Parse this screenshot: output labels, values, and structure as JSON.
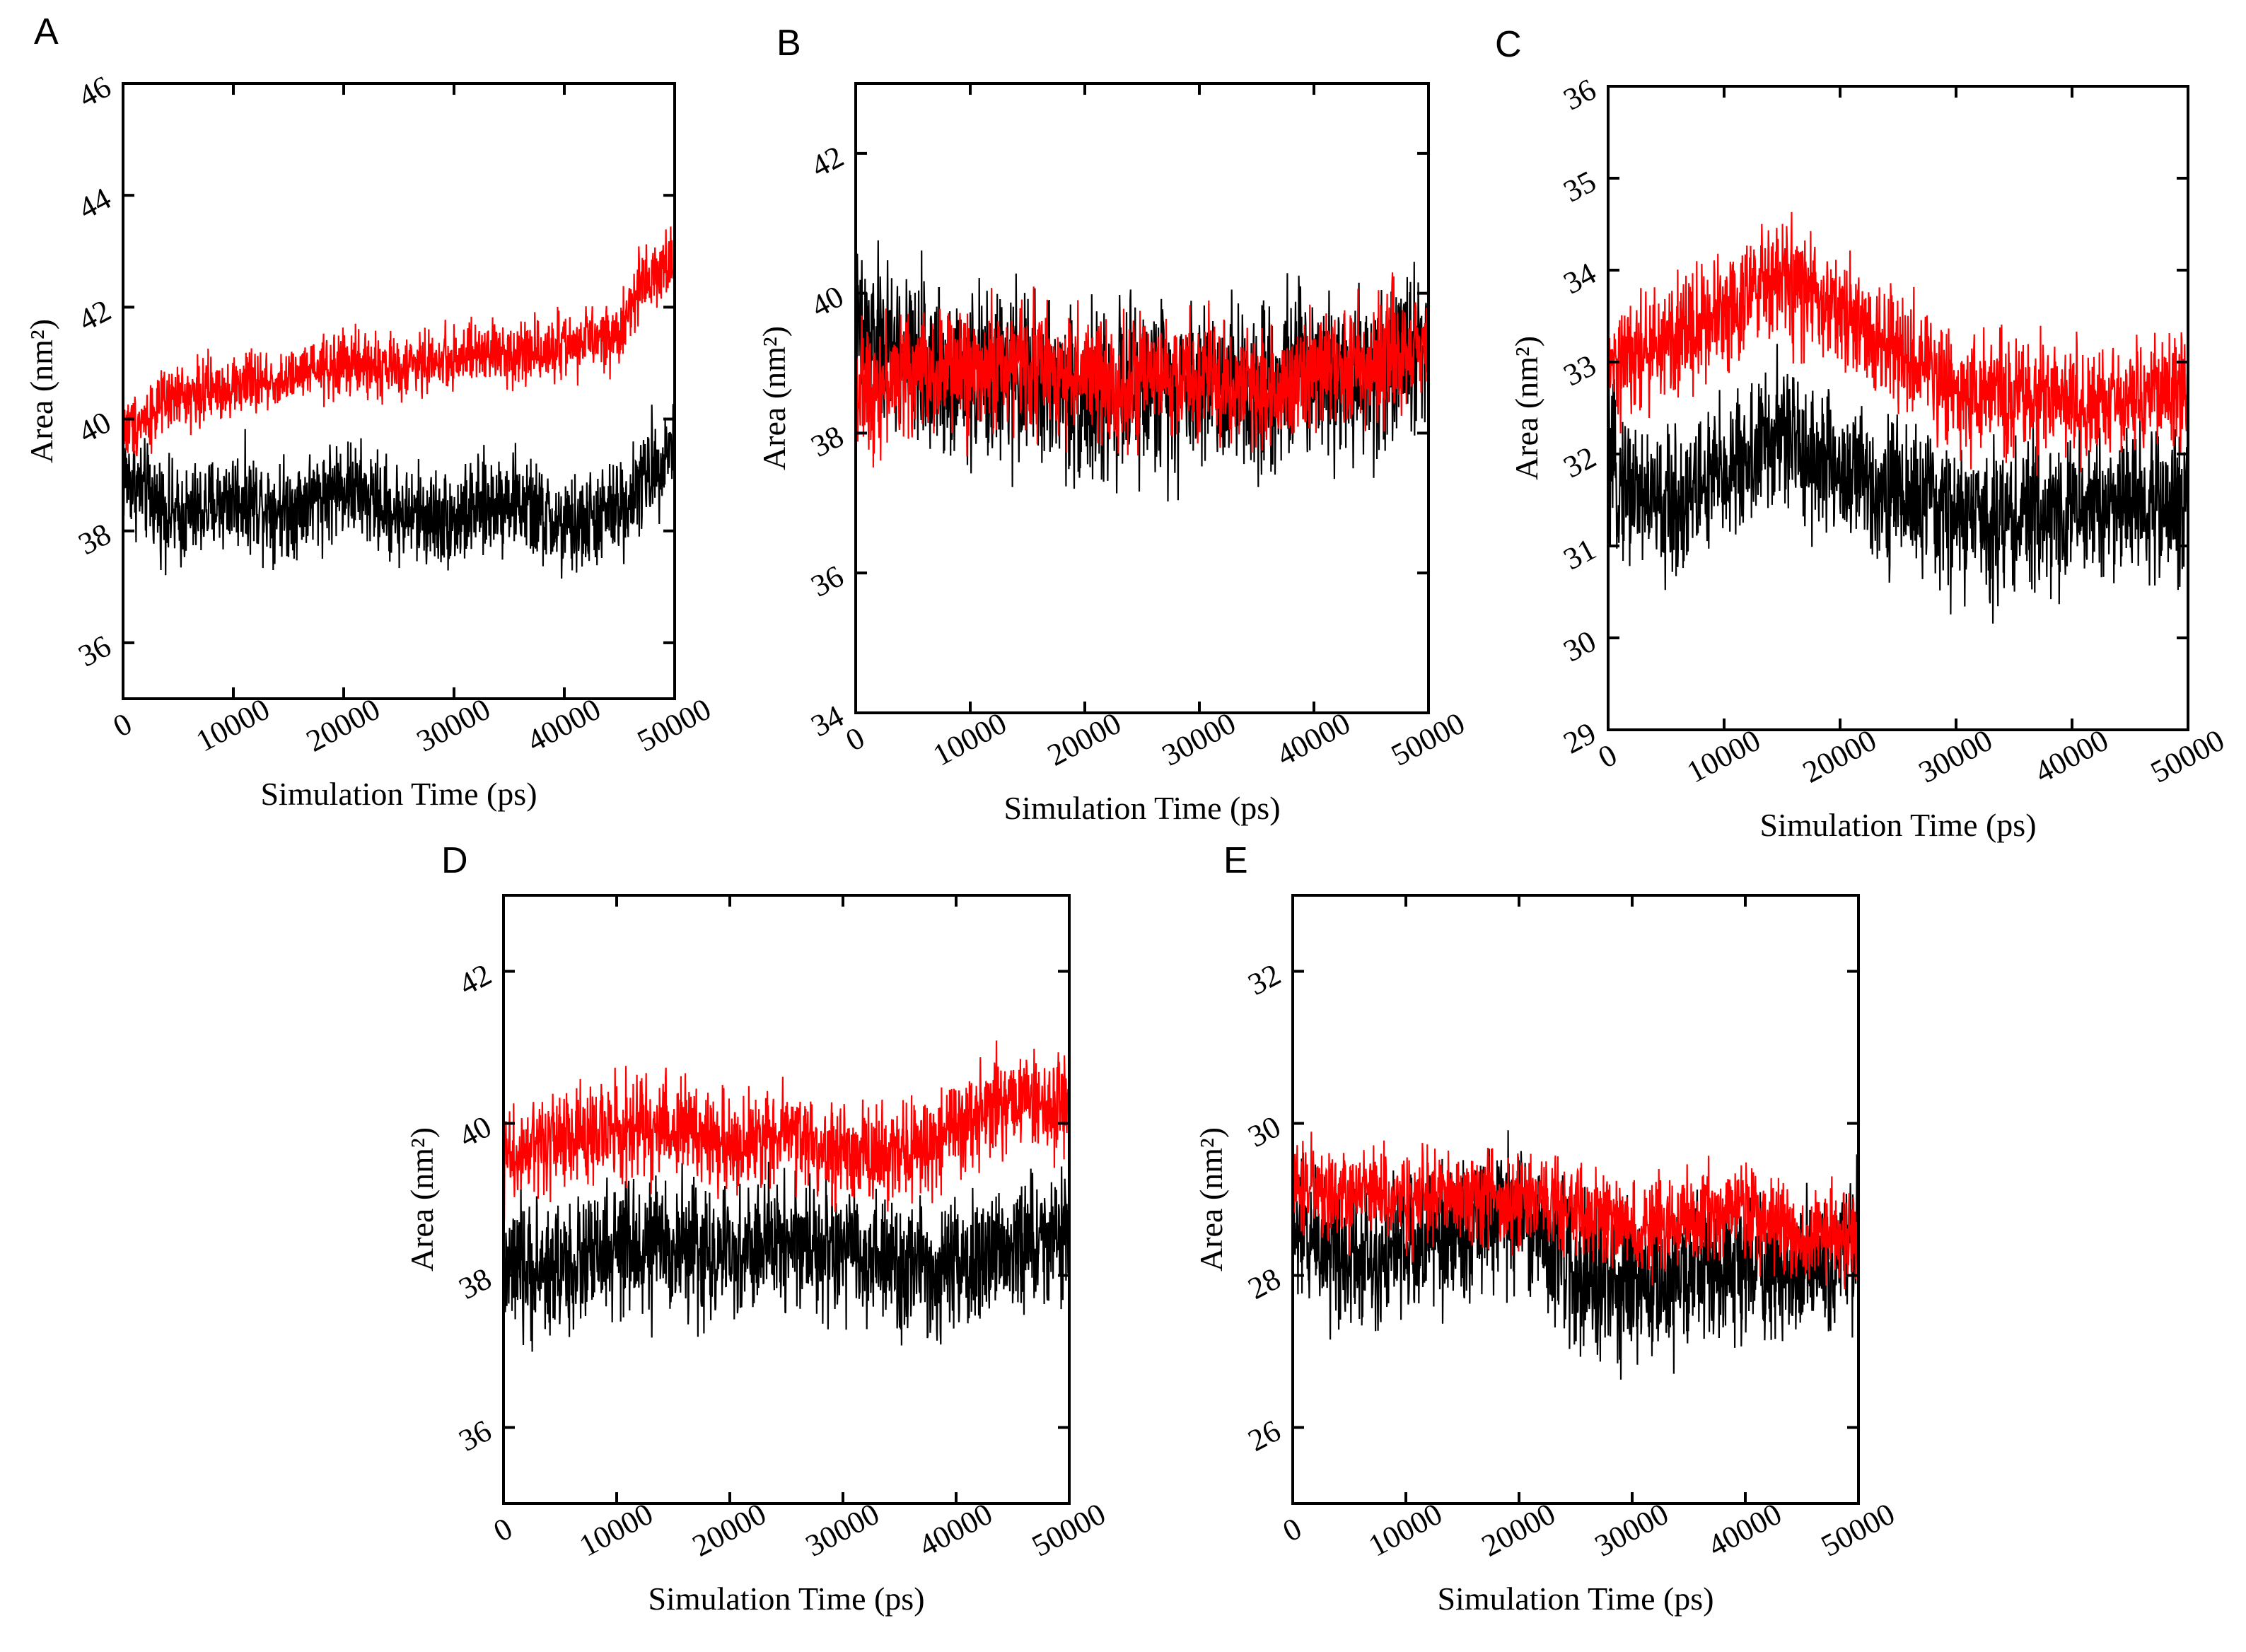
{
  "chart_data": [
    {
      "panel": "A",
      "type": "line",
      "xlabel": "Simulation Time (ps)",
      "ylabel": "Area (nm²)",
      "xlim": [
        0,
        50000
      ],
      "ylim": [
        35,
        46
      ],
      "x_ticks": [
        "0",
        "10000",
        "20000",
        "30000",
        "40000",
        "50000"
      ],
      "y_ticks": [
        "36",
        "38",
        "40",
        "42",
        "44",
        "46"
      ],
      "series": [
        {
          "name": "black",
          "color": "#000000",
          "x": [
            0,
            5000,
            10000,
            15000,
            20000,
            25000,
            30000,
            35000,
            40000,
            45000,
            50000
          ],
          "y": [
            39.0,
            38.2,
            38.6,
            38.4,
            38.8,
            38.3,
            38.2,
            38.6,
            38.0,
            38.4,
            39.6
          ],
          "noise": 2.6
        },
        {
          "name": "red",
          "color": "#ff0000",
          "x": [
            0,
            5000,
            10000,
            15000,
            20000,
            25000,
            30000,
            35000,
            40000,
            45000,
            47000,
            50000
          ],
          "y": [
            39.8,
            40.4,
            40.6,
            40.7,
            41.0,
            40.9,
            41.1,
            41.2,
            41.3,
            41.5,
            42.5,
            42.8
          ],
          "noise": 1.7
        }
      ]
    },
    {
      "panel": "B",
      "type": "line",
      "xlabel": "Simulation Time (ps)",
      "ylabel": "Area (nm²)",
      "xlim": [
        0,
        50000
      ],
      "ylim": [
        34,
        43
      ],
      "x_ticks": [
        "0",
        "10000",
        "20000",
        "30000",
        "40000",
        "50000"
      ],
      "y_ticks": [
        "34",
        "36",
        "38",
        "40",
        "42"
      ],
      "series": [
        {
          "name": "black",
          "color": "#000000",
          "x": [
            0,
            5000,
            10000,
            15000,
            20000,
            25000,
            30000,
            35000,
            40000,
            45000,
            50000
          ],
          "y": [
            39.4,
            39.0,
            38.8,
            38.8,
            38.5,
            38.6,
            38.8,
            38.7,
            39.0,
            38.8,
            39.4
          ],
          "noise": 3.6
        },
        {
          "name": "red",
          "color": "#ff0000",
          "x": [
            0,
            5000,
            10000,
            15000,
            20000,
            25000,
            30000,
            35000,
            40000,
            45000,
            50000
          ],
          "y": [
            38.6,
            38.9,
            38.9,
            39.0,
            38.8,
            38.7,
            38.8,
            38.6,
            38.9,
            39.0,
            39.3
          ],
          "noise": 2.6
        }
      ]
    },
    {
      "panel": "C",
      "type": "line",
      "xlabel": "Simulation Time (ps)",
      "ylabel": "Area (nm²)",
      "xlim": [
        0,
        50000
      ],
      "ylim": [
        29,
        36
      ],
      "x_ticks": [
        "0",
        "10000",
        "20000",
        "30000",
        "40000",
        "50000"
      ],
      "y_ticks": [
        "29",
        "30",
        "31",
        "32",
        "33",
        "34",
        "35",
        "36"
      ],
      "series": [
        {
          "name": "black",
          "color": "#000000",
          "x": [
            0,
            5000,
            10000,
            15000,
            20000,
            25000,
            30000,
            35000,
            40000,
            45000,
            50000
          ],
          "y": [
            31.8,
            31.4,
            31.8,
            32.2,
            31.8,
            31.6,
            31.3,
            31.3,
            31.4,
            31.5,
            31.4
          ],
          "noise": 2.4
        },
        {
          "name": "red",
          "color": "#ff0000",
          "x": [
            0,
            5000,
            10000,
            15000,
            20000,
            25000,
            30000,
            35000,
            40000,
            45000,
            50000
          ],
          "y": [
            32.9,
            33.2,
            33.6,
            33.9,
            33.5,
            33.1,
            32.7,
            32.6,
            32.6,
            32.6,
            32.7
          ],
          "noise": 1.9
        }
      ]
    },
    {
      "panel": "D",
      "type": "line",
      "xlabel": "Simulation Time (ps)",
      "ylabel": "Area (nm²)",
      "xlim": [
        0,
        50000
      ],
      "ylim": [
        35,
        43
      ],
      "x_ticks": [
        "0",
        "10000",
        "20000",
        "30000",
        "40000",
        "50000"
      ],
      "y_ticks": [
        "36",
        "38",
        "40",
        "42"
      ],
      "series": [
        {
          "name": "black",
          "color": "#000000",
          "x": [
            0,
            5000,
            10000,
            15000,
            20000,
            25000,
            30000,
            35000,
            40000,
            45000,
            50000
          ],
          "y": [
            38.0,
            38.1,
            38.3,
            38.4,
            38.2,
            38.5,
            38.3,
            38.1,
            38.0,
            38.4,
            38.5
          ],
          "noise": 2.6
        },
        {
          "name": "red",
          "color": "#ff0000",
          "x": [
            0,
            5000,
            10000,
            15000,
            20000,
            25000,
            30000,
            35000,
            40000,
            45000,
            50000
          ],
          "y": [
            39.5,
            39.8,
            39.9,
            40.0,
            39.7,
            39.9,
            39.6,
            39.6,
            39.9,
            40.4,
            40.2
          ],
          "noise": 1.9
        }
      ]
    },
    {
      "panel": "E",
      "type": "line",
      "xlabel": "Simulation Time (ps)",
      "ylabel": "Area (nm²)",
      "xlim": [
        0,
        50000
      ],
      "ylim": [
        25,
        33
      ],
      "x_ticks": [
        "0",
        "10000",
        "20000",
        "30000",
        "40000",
        "50000"
      ],
      "y_ticks": [
        "26",
        "28",
        "30",
        "32"
      ],
      "series": [
        {
          "name": "black",
          "color": "#000000",
          "x": [
            0,
            5000,
            10000,
            15000,
            20000,
            25000,
            30000,
            35000,
            40000,
            45000,
            50000
          ],
          "y": [
            28.6,
            28.3,
            28.3,
            28.6,
            28.9,
            28.0,
            27.8,
            28.0,
            28.2,
            28.0,
            28.4
          ],
          "noise": 2.8
        },
        {
          "name": "red",
          "color": "#ff0000",
          "x": [
            0,
            5000,
            10000,
            15000,
            20000,
            25000,
            30000,
            35000,
            40000,
            45000,
            50000
          ],
          "y": [
            29.1,
            29.1,
            29.0,
            29.0,
            29.0,
            28.9,
            28.6,
            28.8,
            28.9,
            28.5,
            28.6
          ],
          "noise": 1.8
        }
      ]
    }
  ]
}
